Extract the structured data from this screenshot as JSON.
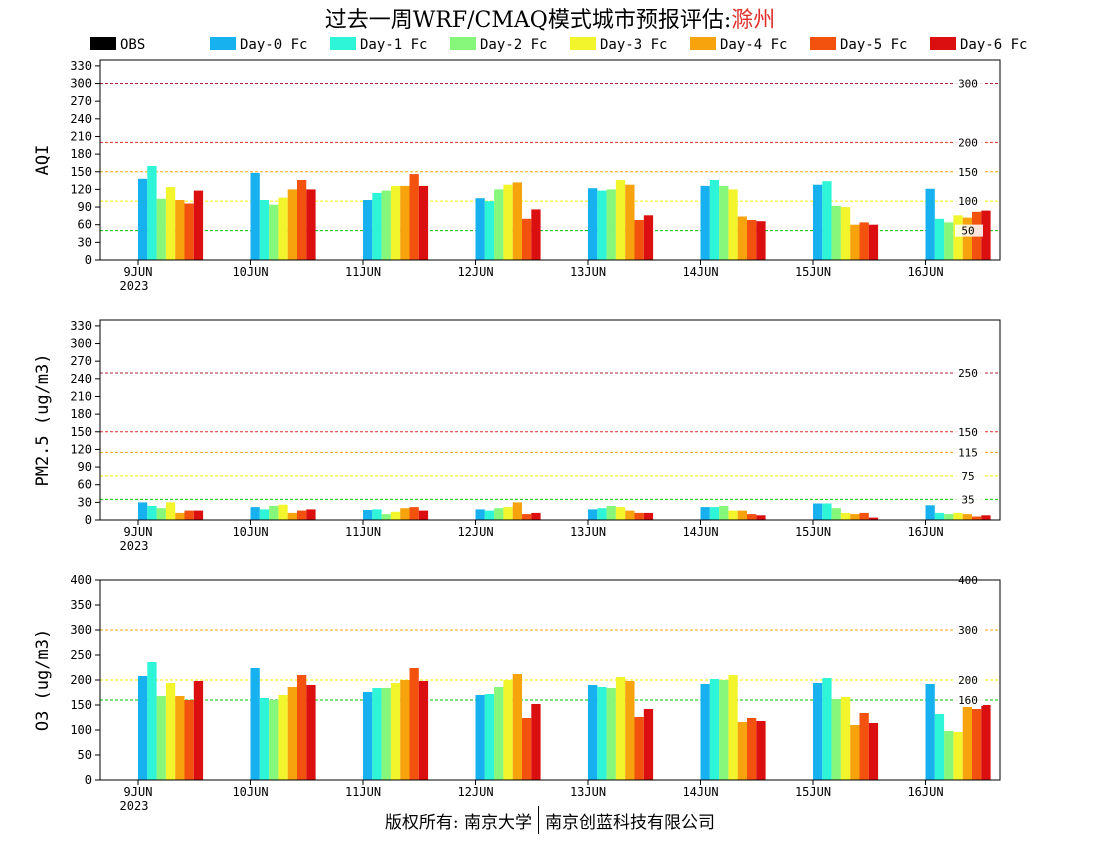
{
  "title": {
    "main": "过去一周WRF/CMAQ模式城市预报评估:",
    "city": "滁州"
  },
  "footer": {
    "left": "版权所有: 南京大学",
    "right": "南京创蓝科技有限公司"
  },
  "colors": {
    "OBS": "#000000",
    "Day-0 Fc": "#17b1f0",
    "Day-1 Fc": "#2ef4d8",
    "Day-2 Fc": "#86f77a",
    "Day-3 Fc": "#f2f52c",
    "Day-4 Fc": "#f7a30e",
    "Day-5 Fc": "#f2520e",
    "Day-6 Fc": "#dc0f10"
  },
  "chart_data": [
    {
      "type": "bar",
      "ylabel": "AQI",
      "ylim": [
        0,
        340
      ],
      "yticks": [
        0,
        30,
        60,
        90,
        120,
        150,
        180,
        210,
        240,
        270,
        300,
        330
      ],
      "categories": [
        "9JUN",
        "10JUN",
        "11JUN",
        "12JUN",
        "13JUN",
        "14JUN",
        "15JUN",
        "16JUN"
      ],
      "year_label": "2023",
      "legend": [
        "OBS",
        "Day-0 Fc",
        "Day-1 Fc",
        "Day-2 Fc",
        "Day-3 Fc",
        "Day-4 Fc",
        "Day-5 Fc",
        "Day-6 Fc"
      ],
      "series": [
        {
          "name": "OBS",
          "values": [
            0,
            0,
            0,
            0,
            0,
            0,
            0,
            0
          ]
        },
        {
          "name": "Day-0 Fc",
          "values": [
            138,
            148,
            102,
            105,
            122,
            126,
            128,
            121
          ]
        },
        {
          "name": "Day-1 Fc",
          "values": [
            160,
            102,
            114,
            100,
            118,
            136,
            134,
            70
          ]
        },
        {
          "name": "Day-2 Fc",
          "values": [
            104,
            94,
            118,
            120,
            120,
            126,
            92,
            64
          ]
        },
        {
          "name": "Day-3 Fc",
          "values": [
            124,
            106,
            126,
            128,
            136,
            120,
            90,
            76
          ]
        },
        {
          "name": "Day-4 Fc",
          "values": [
            102,
            120,
            126,
            132,
            128,
            74,
            60,
            72
          ]
        },
        {
          "name": "Day-5 Fc",
          "values": [
            96,
            136,
            146,
            70,
            68,
            68,
            64,
            82
          ]
        },
        {
          "name": "Day-6 Fc",
          "values": [
            118,
            120,
            126,
            86,
            76,
            66,
            60,
            84
          ]
        }
      ],
      "thresholds": [
        {
          "value": 50,
          "label": "50",
          "color": "#00c000"
        },
        {
          "value": 100,
          "label": "100",
          "color": "#f2f200"
        },
        {
          "value": 150,
          "label": "150",
          "color": "#f7a30e"
        },
        {
          "value": 200,
          "label": "200",
          "color": "#e0302b"
        },
        {
          "value": 300,
          "label": "300",
          "color": "#b0203a"
        }
      ]
    },
    {
      "type": "bar",
      "ylabel": "PM2.5 (ug/m3)",
      "ylim": [
        0,
        340
      ],
      "yticks": [
        0,
        30,
        60,
        90,
        120,
        150,
        180,
        210,
        240,
        270,
        300,
        330
      ],
      "categories": [
        "9JUN",
        "10JUN",
        "11JUN",
        "12JUN",
        "13JUN",
        "14JUN",
        "15JUN",
        "16JUN"
      ],
      "year_label": "2023",
      "series": [
        {
          "name": "OBS",
          "values": [
            0,
            0,
            0,
            0,
            0,
            0,
            0,
            0
          ]
        },
        {
          "name": "Day-0 Fc",
          "values": [
            30,
            22,
            17,
            18,
            18,
            22,
            28,
            25
          ]
        },
        {
          "name": "Day-1 Fc",
          "values": [
            24,
            18,
            18,
            16,
            20,
            22,
            28,
            12
          ]
        },
        {
          "name": "Day-2 Fc",
          "values": [
            20,
            24,
            10,
            20,
            24,
            24,
            20,
            10
          ]
        },
        {
          "name": "Day-3 Fc",
          "values": [
            30,
            26,
            14,
            22,
            22,
            16,
            12,
            12
          ]
        },
        {
          "name": "Day-4 Fc",
          "values": [
            12,
            12,
            20,
            30,
            16,
            16,
            10,
            10
          ]
        },
        {
          "name": "Day-5 Fc",
          "values": [
            16,
            16,
            22,
            10,
            12,
            10,
            12,
            6
          ]
        },
        {
          "name": "Day-6 Fc",
          "values": [
            16,
            18,
            16,
            12,
            12,
            8,
            4,
            8
          ]
        }
      ],
      "thresholds": [
        {
          "value": 35,
          "label": "35",
          "color": "#00c000"
        },
        {
          "value": 75,
          "label": "75",
          "color": "#f2f200"
        },
        {
          "value": 115,
          "label": "115",
          "color": "#f7a30e"
        },
        {
          "value": 150,
          "label": "150",
          "color": "#e0302b"
        },
        {
          "value": 250,
          "label": "250",
          "color": "#b0203a"
        }
      ]
    },
    {
      "type": "bar",
      "ylabel": "O3 (ug/m3)",
      "ylim": [
        0,
        400
      ],
      "yticks": [
        0,
        50,
        100,
        150,
        200,
        250,
        300,
        350,
        400
      ],
      "categories": [
        "9JUN",
        "10JUN",
        "11JUN",
        "12JUN",
        "13JUN",
        "14JUN",
        "15JUN",
        "16JUN"
      ],
      "year_label": "2023",
      "series": [
        {
          "name": "OBS",
          "values": [
            0,
            0,
            0,
            0,
            0,
            0,
            0,
            0
          ]
        },
        {
          "name": "Day-0 Fc",
          "values": [
            208,
            224,
            176,
            170,
            190,
            192,
            194,
            192
          ]
        },
        {
          "name": "Day-1 Fc",
          "values": [
            236,
            164,
            184,
            172,
            186,
            202,
            204,
            132
          ]
        },
        {
          "name": "Day-2 Fc",
          "values": [
            168,
            160,
            184,
            186,
            184,
            200,
            162,
            98
          ]
        },
        {
          "name": "Day-3 Fc",
          "values": [
            194,
            170,
            194,
            200,
            206,
            210,
            166,
            96
          ]
        },
        {
          "name": "Day-4 Fc",
          "values": [
            168,
            186,
            200,
            212,
            198,
            116,
            110,
            146
          ]
        },
        {
          "name": "Day-5 Fc",
          "values": [
            160,
            210,
            224,
            124,
            126,
            124,
            134,
            142
          ]
        },
        {
          "name": "Day-6 Fc",
          "values": [
            198,
            190,
            198,
            152,
            142,
            118,
            114,
            150
          ]
        }
      ],
      "thresholds": [
        {
          "value": 160,
          "label": "160",
          "color": "#00c000"
        },
        {
          "value": 200,
          "label": "200",
          "color": "#f2f200"
        },
        {
          "value": 300,
          "label": "300",
          "color": "#f7a30e"
        },
        {
          "value": 400,
          "label": "400",
          "color": "#e0302b"
        }
      ]
    }
  ]
}
